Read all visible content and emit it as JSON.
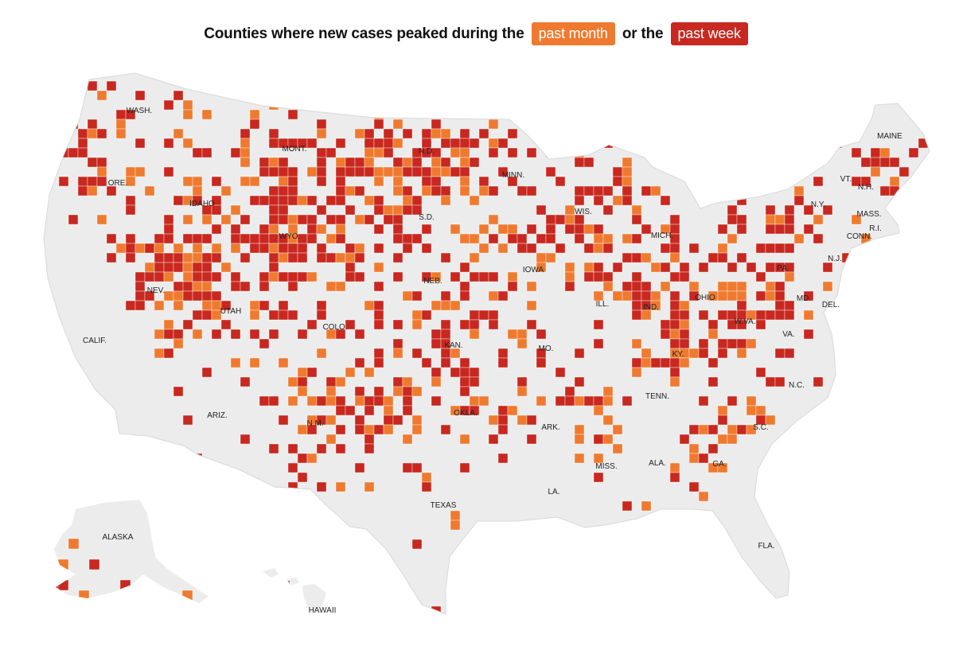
{
  "title": {
    "text_before": "Counties where new cases peaked during the",
    "chip_month": "past month",
    "text_middle": "or the",
    "chip_week": "past week"
  },
  "colors": {
    "past_month": "#ef7a2f",
    "past_week": "#c8281f",
    "no_peak": "#ececec",
    "border": "#ffffff"
  },
  "state_labels": [
    "WASH.",
    "MONT.",
    "N.D.",
    "MINN.",
    "MAINE",
    "ORE.",
    "IDAHO",
    "S.D.",
    "WIS.",
    "VT.",
    "N.H.",
    "N.Y.",
    "MASS.",
    "CONN.",
    "R.I.",
    "WYO.",
    "MICH.",
    "N.J.",
    "IOWA",
    "NEB.",
    "PA.",
    "NEV.",
    "OHIO",
    "MD.",
    "DEL.",
    "UTAH",
    "ILL.",
    "IND.",
    "W.VA.",
    "CALIF.",
    "COLO.",
    "VA.",
    "KAN.",
    "MO.",
    "KY.",
    "TENN.",
    "N.C.",
    "ARIZ.",
    "OKLA.",
    "N.M.",
    "ARK.",
    "S.C.",
    "ALA.",
    "MISS.",
    "GA.",
    "TEXAS",
    "LA.",
    "ALASKA",
    "FLA.",
    "HAWAII"
  ]
}
